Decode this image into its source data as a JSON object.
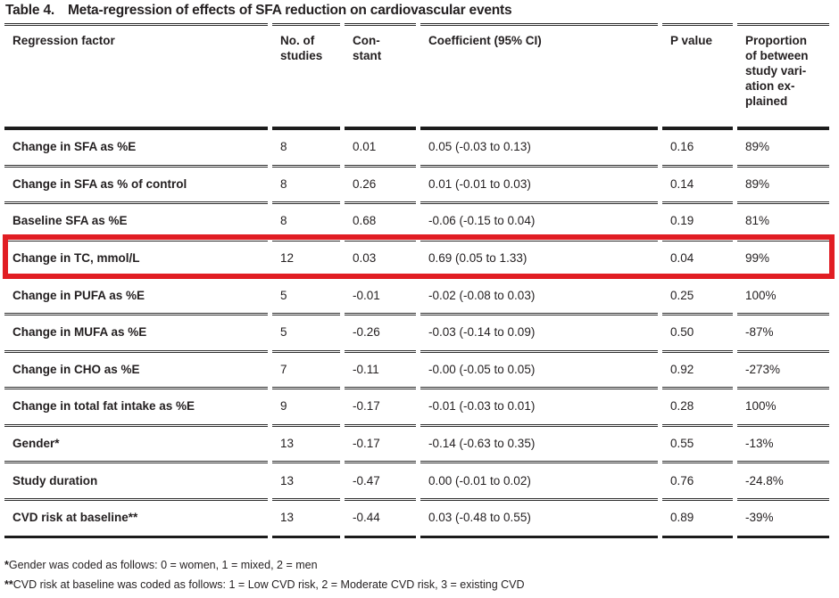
{
  "title": {
    "label": "Table 4.",
    "text": "Meta-regression of effects of SFA reduction on cardiovascular events"
  },
  "table": {
    "columns": [
      {
        "key": "factor",
        "label": "Regression factor"
      },
      {
        "key": "n_studies",
        "label": "No. of\nstudies"
      },
      {
        "key": "constant",
        "label": "Con-\nstant"
      },
      {
        "key": "coefficient",
        "label": "Coefficient (95% CI)"
      },
      {
        "key": "p_value",
        "label": "P value"
      },
      {
        "key": "proportion",
        "label": "Proportion\nof between\nstudy vari-\nation ex-\nplained"
      }
    ],
    "rows": [
      {
        "factor": "Change in SFA as %E",
        "n_studies": "8",
        "constant": "0.01",
        "coefficient": "0.05 (-0.03 to 0.13)",
        "p_value": "0.16",
        "proportion": "89%"
      },
      {
        "factor": "Change in SFA as % of control",
        "n_studies": "8",
        "constant": "0.26",
        "coefficient": "0.01 (-0.01 to 0.03)",
        "p_value": "0.14",
        "proportion": "89%"
      },
      {
        "factor": "Baseline SFA as %E",
        "n_studies": "8",
        "constant": "0.68",
        "coefficient": "-0.06 (-0.15 to 0.04)",
        "p_value": "0.19",
        "proportion": "81%"
      },
      {
        "factor": "Change in TC, mmol/L",
        "n_studies": "12",
        "constant": "0.03",
        "coefficient": "0.69 (0.05 to 1.33)",
        "p_value": "0.04",
        "proportion": "99%"
      },
      {
        "factor": "Change in PUFA as %E",
        "n_studies": "5",
        "constant": "-0.01",
        "coefficient": "-0.02 (-0.08 to 0.03)",
        "p_value": "0.25",
        "proportion": "100%"
      },
      {
        "factor": "Change in MUFA as %E",
        "n_studies": "5",
        "constant": "-0.26",
        "coefficient": "-0.03 (-0.14 to 0.09)",
        "p_value": "0.50",
        "proportion": "-87%"
      },
      {
        "factor": "Change in CHO as %E",
        "n_studies": "7",
        "constant": "-0.11",
        "coefficient": "-0.00 (-0.05 to 0.05)",
        "p_value": "0.92",
        "proportion": "-273%"
      },
      {
        "factor": "Change in total fat intake as %E",
        "n_studies": "9",
        "constant": "-0.17",
        "coefficient": "-0.01 (-0.03 to 0.01)",
        "p_value": "0.28",
        "proportion": "100%"
      },
      {
        "factor": "Gender*",
        "n_studies": "13",
        "constant": "-0.17",
        "coefficient": "-0.14 (-0.63 to 0.35)",
        "p_value": "0.55",
        "proportion": "-13%"
      },
      {
        "factor": "Study duration",
        "n_studies": "13",
        "constant": "-0.47",
        "coefficient": "0.00 (-0.01 to 0.02)",
        "p_value": "0.76",
        "proportion": "-24.8%"
      },
      {
        "factor": "CVD risk at baseline**",
        "n_studies": "13",
        "constant": "-0.44",
        "coefficient": "0.03 (-0.48 to 0.55)",
        "p_value": "0.89",
        "proportion": "-39%"
      }
    ],
    "highlighted_row_index": 3
  },
  "footnotes": [
    {
      "marker": "*",
      "text": "Gender was coded as follows: 0 = women, 1 = mixed, 2 = men"
    },
    {
      "marker": "**",
      "text": "CVD risk at baseline was coded as follows: 1 = Low CVD risk, 2 = Moderate CVD risk, 3 = existing CVD"
    }
  ],
  "colors": {
    "highlight_border": "#e11d23",
    "text": "#231f20",
    "rule": "#2f2f2f"
  }
}
